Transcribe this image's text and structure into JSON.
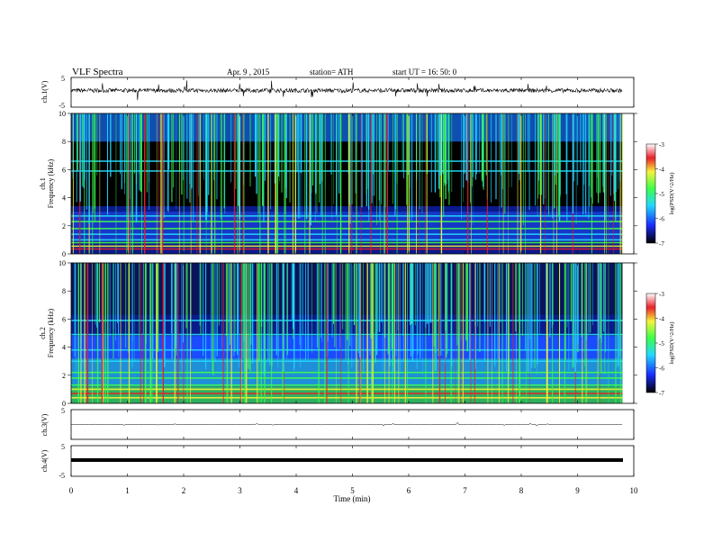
{
  "header": {
    "title": "VLF  Spectra",
    "date": "Apr. 9  , 2015",
    "station": "station= ATH",
    "start": "start  UT  =    16: 50: 0"
  },
  "chart_data": [
    {
      "type": "line",
      "ylabel": "ch.1(V)",
      "ylim": [
        -5,
        5
      ],
      "yticks": [
        "5",
        "-5"
      ],
      "trace": "noisy waveform centred near +0.6 V with occasional spikes",
      "color": "#000000"
    },
    {
      "type": "heatmap",
      "ylabel_lines": [
        "ch.1",
        "Frequency (kHz)"
      ],
      "ylim": [
        0,
        10
      ],
      "yticks": [
        "0",
        "2",
        "4",
        "6",
        "8",
        "10"
      ],
      "colorbar": {
        "label": "log(PSD(V^2/Hz)",
        "range": [
          -7,
          -3
        ],
        "ticks": [
          "-3",
          "-4",
          "-5",
          "-6",
          "-7"
        ]
      },
      "description": "black background in 3.5-8 kHz band, blue/cyan below 3 kHz, frequent vertical broadband sferic streaks reaching red/yellow in 6-10 kHz band, harmonic lines below 1 kHz"
    },
    {
      "type": "heatmap",
      "ylabel_lines": [
        "ch.2",
        "Frequency (kHz)"
      ],
      "ylim": [
        0,
        10
      ],
      "yticks": [
        "0",
        "2",
        "4",
        "6",
        "8",
        "10"
      ],
      "colorbar": {
        "label": "log(PSD(V^2/Hz)",
        "range": [
          -7,
          -3
        ],
        "ticks": [
          "-3",
          "-4",
          "-5",
          "-6",
          "-7"
        ]
      },
      "description": "bands of blue and cyan with cyan lines near 6 kHz and 5 kHz, green/yellow harmonic lines below 2 kHz, frequent vertical sferic streaks"
    },
    {
      "type": "line",
      "ylabel": "ch.3(V)",
      "ylim": [
        -5,
        5
      ],
      "yticks": [
        "5"
      ],
      "trace": "flat trace near 0 V"
    },
    {
      "type": "line",
      "ylabel": "ch.4(V)",
      "ylim": [
        -5,
        5
      ],
      "yticks": [
        "5",
        "-5"
      ],
      "trace": "thick flat trace near 0 V"
    }
  ],
  "xaxis": {
    "label": "Time  (min)",
    "range": [
      0,
      10
    ],
    "ticks": [
      "0",
      "1",
      "2",
      "3",
      "4",
      "5",
      "6",
      "7",
      "8",
      "9",
      "10"
    ],
    "data_end": 9.8
  },
  "colors": {
    "background": "#000000",
    "deep_blue": "#0a1a8c",
    "blue": "#1a4bff",
    "cyan": "#22d8ff",
    "green": "#3cff4a",
    "yellow": "#f6f23a",
    "red": "#e8202a"
  }
}
